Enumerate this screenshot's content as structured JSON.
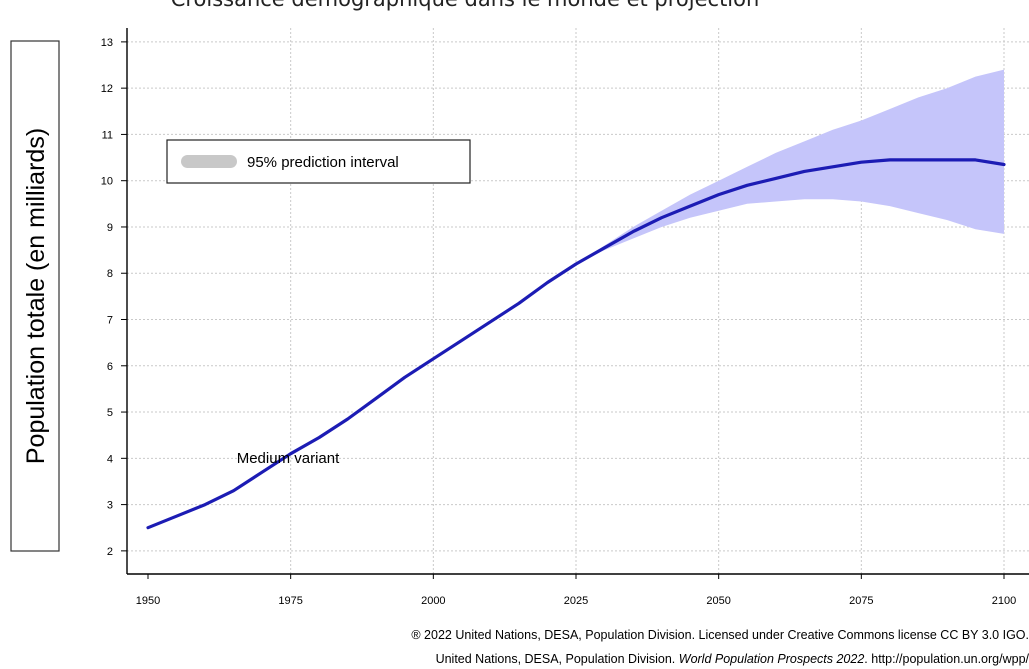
{
  "chart_data": {
    "type": "line",
    "title": "Croissance démographique dans le monde et projection",
    "xlabel": "",
    "ylabel": "Population totale (en milliards)",
    "xlim": [
      1950,
      2100
    ],
    "ylim": [
      1.5,
      13.3
    ],
    "x_ticks": [
      1950,
      1975,
      2000,
      2025,
      2050,
      2075,
      2100
    ],
    "y_ticks": [
      2,
      3,
      4,
      5,
      6,
      7,
      8,
      9,
      10,
      11,
      12,
      13
    ],
    "grid": true,
    "legend_position": "top-left",
    "legend": [
      {
        "label": "95% prediction interval",
        "color": "#c8c8c8"
      }
    ],
    "annotations": [
      {
        "text": "Medium variant",
        "x": 1968,
        "y": 3.75
      }
    ],
    "series": [
      {
        "type": "line",
        "color": "#1c1cb4",
        "x": [
          1950,
          1955,
          1960,
          1965,
          1970,
          1975,
          1980,
          1985,
          1990,
          1995,
          2000,
          2005,
          2010,
          2015,
          2020,
          2025,
          2030,
          2035,
          2040,
          2045,
          2050,
          2055,
          2060,
          2065,
          2070,
          2075,
          2080,
          2085,
          2090,
          2095,
          2100
        ],
        "y": [
          2.5,
          2.75,
          3.0,
          3.3,
          3.7,
          4.1,
          4.45,
          4.85,
          5.3,
          5.75,
          6.15,
          6.55,
          6.95,
          7.35,
          7.8,
          8.2,
          8.55,
          8.9,
          9.2,
          9.45,
          9.7,
          9.9,
          10.05,
          10.2,
          10.3,
          10.4,
          10.45,
          10.45,
          10.45,
          10.45,
          10.35
        ]
      },
      {
        "type": "band",
        "color": "#c5c5fa",
        "x": [
          2020,
          2025,
          2030,
          2035,
          2040,
          2045,
          2050,
          2055,
          2060,
          2065,
          2070,
          2075,
          2080,
          2085,
          2090,
          2095,
          2100
        ],
        "lower": [
          7.8,
          8.2,
          8.5,
          8.75,
          9.0,
          9.2,
          9.35,
          9.5,
          9.55,
          9.6,
          9.6,
          9.55,
          9.45,
          9.3,
          9.15,
          8.95,
          8.85
        ],
        "upper": [
          7.8,
          8.2,
          8.6,
          9.0,
          9.35,
          9.7,
          10.0,
          10.3,
          10.6,
          10.85,
          11.1,
          11.3,
          11.55,
          11.8,
          12.0,
          12.25,
          12.4
        ]
      }
    ]
  },
  "colors": {
    "line": "#1c1cb4",
    "band": "#c5c5fa",
    "legend_swatch": "#c8c8c8",
    "grid": "#c9c9c9",
    "axis": "#000000"
  },
  "credits": {
    "line1": "® 2022 United Nations, DESA, Population Division. Licensed under Creative Commons license CC BY 3.0 IGO.",
    "line2_prefix": "United Nations, DESA, Population Division. ",
    "line2_italic": "World Population Prospects 2022",
    "line2_suffix": ". http://population.un.org/wpp/"
  }
}
